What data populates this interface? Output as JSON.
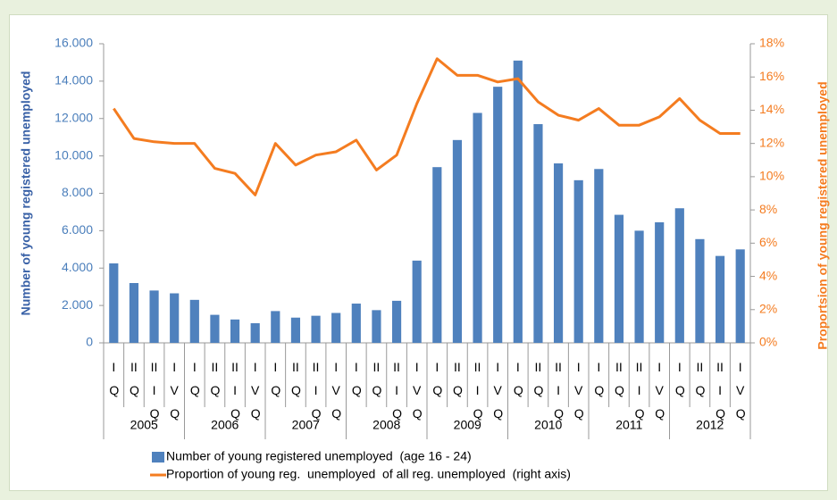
{
  "chart_data": {
    "type": "bar_line",
    "ylabel": "Number of young registered  unemployed",
    "y2label": "Proportsion of young registered  unemployed",
    "categories": [
      "I Q",
      "II Q",
      "III Q",
      "IV Q",
      "I Q",
      "II Q",
      "III Q",
      "IV Q",
      "I Q",
      "II Q",
      "III Q",
      "IV Q",
      "I Q",
      "II Q",
      "III Q",
      "IV Q",
      "I Q",
      "II Q",
      "III Q",
      "IV Q",
      "I Q",
      "II Q",
      "III Q",
      "IV Q",
      "I Q",
      "II Q",
      "III Q",
      "IV Q",
      "I Q",
      "II Q",
      "III Q",
      "IV Q"
    ],
    "years": [
      "2005",
      "2006",
      "2007",
      "2008",
      "2009",
      "2010",
      "2011",
      "2012"
    ],
    "series": [
      {
        "name": "Number of young registered unemployed  (age 16 - 24)",
        "type": "bar",
        "color": "#4f81bd",
        "values": [
          4250,
          3200,
          2800,
          2650,
          2300,
          1500,
          1250,
          1050,
          1700,
          1350,
          1450,
          1600,
          2100,
          1750,
          2250,
          4400,
          9400,
          10850,
          12300,
          13700,
          15100,
          11700,
          9600,
          8700,
          9300,
          6850,
          6000,
          6450,
          7200,
          5550,
          4650,
          5000
        ]
      },
      {
        "name": "Proportion of young reg.  unemployed  of all reg. unemployed  (right axis)",
        "type": "line",
        "axis": "y2",
        "color": "#f47c20",
        "values": [
          14.1,
          12.3,
          12.1,
          12.0,
          12.0,
          10.5,
          10.2,
          8.9,
          12.0,
          10.7,
          11.3,
          11.5,
          12.2,
          10.4,
          11.3,
          14.4,
          17.1,
          16.1,
          16.1,
          15.7,
          15.9,
          14.5,
          13.7,
          13.4,
          14.1,
          13.1,
          13.1,
          13.6,
          14.7,
          13.4,
          12.6,
          12.6
        ]
      }
    ],
    "ylim": [
      0,
      16000
    ],
    "yticks": [
      0,
      {
        "value": 2000,
        "label": "2.000"
      },
      {
        "value": 4000,
        "label": "4.000"
      },
      {
        "value": 6000,
        "label": "6.000"
      },
      {
        "value": 8000,
        "label": "8.000"
      },
      {
        "value": 10000,
        "label": "10.000"
      },
      {
        "value": 12000,
        "label": "12.000"
      },
      {
        "value": 14000,
        "label": "14.000"
      },
      {
        "value": 16000,
        "label": "16.000"
      }
    ],
    "y2lim": [
      0,
      18
    ],
    "y2ticks": [
      {
        "value": 0,
        "label": "0%"
      },
      {
        "value": 2,
        "label": "2%"
      },
      {
        "value": 4,
        "label": "4%"
      },
      {
        "value": 6,
        "label": "6%"
      },
      {
        "value": 8,
        "label": "8%"
      },
      {
        "value": 10,
        "label": "10%"
      },
      {
        "value": 12,
        "label": "12%"
      },
      {
        "value": 14,
        "label": "14%"
      },
      {
        "value": 16,
        "label": "16%"
      },
      {
        "value": 18,
        "label": "18%"
      }
    ],
    "grid": false
  }
}
